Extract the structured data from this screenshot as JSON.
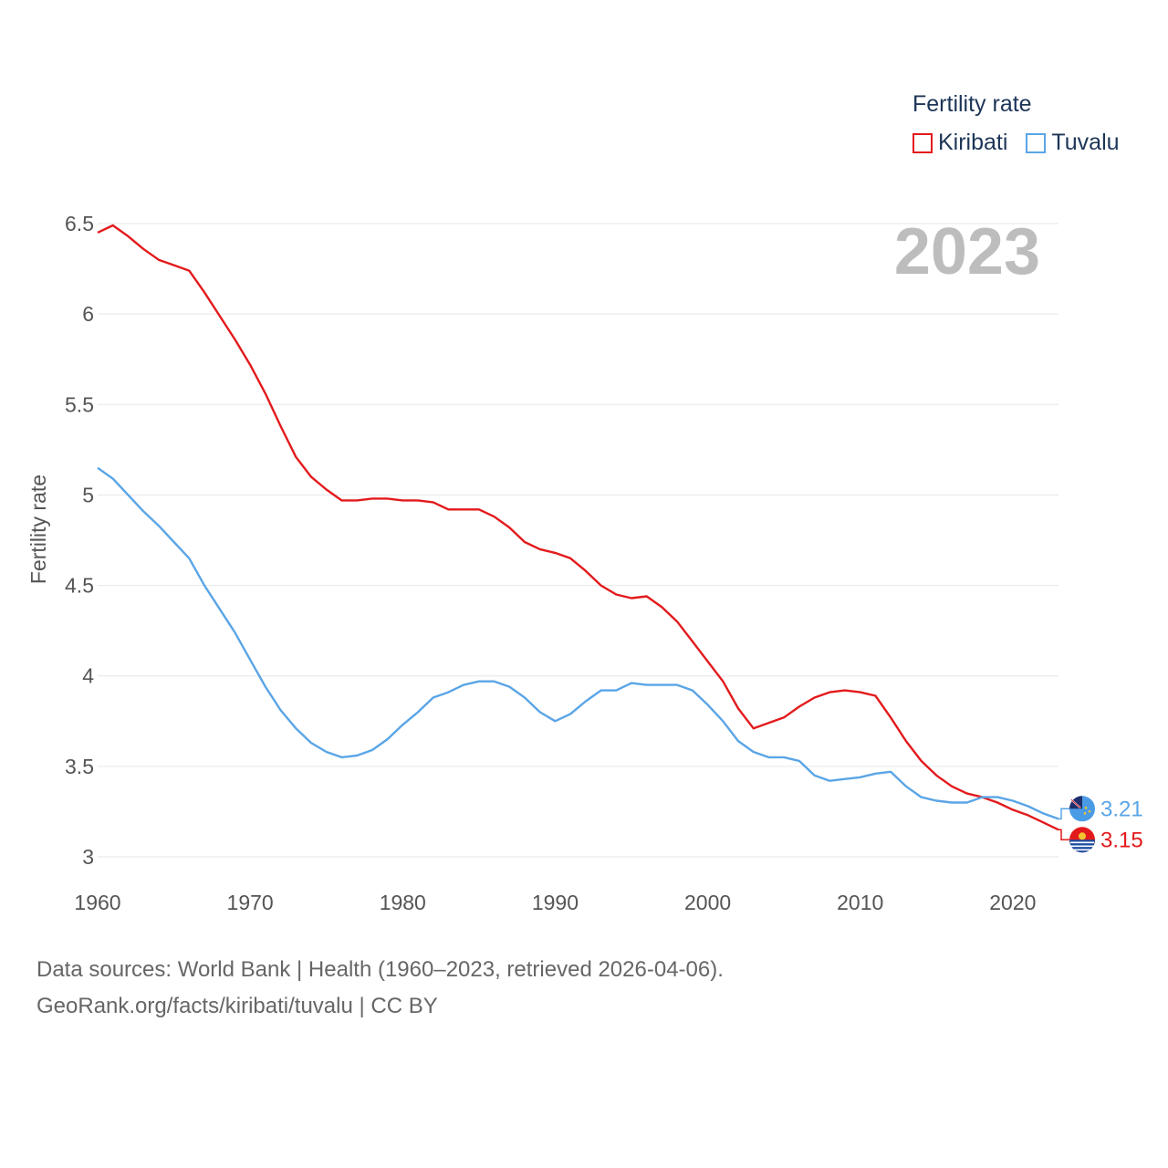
{
  "legend": {
    "title": "Fertility rate",
    "items": [
      {
        "label": "Kiribati",
        "color": "#e31a1c"
      },
      {
        "label": "Tuvalu",
        "color": "#5aa5e6"
      }
    ]
  },
  "year_display": "2023",
  "footer": {
    "line1": "Data sources: World Bank | Health (1960–2023, retrieved 2026-04-06).",
    "line2": "GeoRank.org/facts/kiribati/tuvalu | CC BY"
  },
  "chart_data": {
    "type": "line",
    "title": "",
    "xlabel": "",
    "ylabel": "Fertility rate",
    "xlim": [
      1960,
      2023
    ],
    "ylim": [
      3,
      6.5
    ],
    "x_ticks": [
      1960,
      1970,
      1980,
      1990,
      2000,
      2010,
      2020
    ],
    "y_ticks": [
      {
        "value": 3,
        "label": "3"
      },
      {
        "value": 3.5,
        "label": "3.5"
      },
      {
        "value": 4,
        "label": "4"
      },
      {
        "value": 4.5,
        "label": "4.5"
      },
      {
        "value": 5,
        "label": "5"
      },
      {
        "value": 5.5,
        "label": "5.5"
      },
      {
        "value": 6,
        "label": "6"
      },
      {
        "value": 6.5,
        "label": "6.5"
      }
    ],
    "grid": true,
    "x": [
      1960,
      1961,
      1962,
      1963,
      1964,
      1965,
      1966,
      1967,
      1968,
      1969,
      1970,
      1971,
      1972,
      1973,
      1974,
      1975,
      1976,
      1977,
      1978,
      1979,
      1980,
      1981,
      1982,
      1983,
      1984,
      1985,
      1986,
      1987,
      1988,
      1989,
      1990,
      1991,
      1992,
      1993,
      1994,
      1995,
      1996,
      1997,
      1998,
      1999,
      2000,
      2001,
      2002,
      2003,
      2004,
      2005,
      2006,
      2007,
      2008,
      2009,
      2010,
      2011,
      2012,
      2013,
      2014,
      2015,
      2016,
      2017,
      2018,
      2019,
      2020,
      2021,
      2022,
      2023
    ],
    "series": [
      {
        "name": "Kiribati",
        "color": "#e31a1c",
        "end_label": "3.15",
        "values": [
          6.45,
          6.49,
          6.43,
          6.36,
          6.3,
          6.27,
          6.24,
          6.12,
          5.99,
          5.86,
          5.72,
          5.56,
          5.38,
          5.21,
          5.1,
          5.03,
          4.97,
          4.97,
          4.98,
          4.98,
          4.97,
          4.97,
          4.96,
          4.92,
          4.92,
          4.92,
          4.88,
          4.82,
          4.74,
          4.7,
          4.68,
          4.65,
          4.58,
          4.5,
          4.45,
          4.43,
          4.44,
          4.38,
          4.3,
          4.19,
          4.08,
          3.97,
          3.82,
          3.71,
          3.74,
          3.77,
          3.83,
          3.88,
          3.91,
          3.92,
          3.91,
          3.89,
          3.77,
          3.64,
          3.53,
          3.45,
          3.39,
          3.35,
          3.33,
          3.3,
          3.26,
          3.23,
          3.19,
          3.15
        ]
      },
      {
        "name": "Tuvalu",
        "color": "#5aa5e6",
        "end_label": "3.21",
        "values": [
          5.15,
          5.09,
          5.0,
          4.91,
          4.83,
          4.74,
          4.65,
          4.5,
          4.37,
          4.24,
          4.09,
          3.94,
          3.81,
          3.71,
          3.63,
          3.58,
          3.55,
          3.56,
          3.59,
          3.65,
          3.73,
          3.8,
          3.88,
          3.91,
          3.95,
          3.97,
          3.97,
          3.94,
          3.88,
          3.8,
          3.75,
          3.79,
          3.86,
          3.92,
          3.92,
          3.96,
          3.95,
          3.95,
          3.95,
          3.92,
          3.84,
          3.75,
          3.64,
          3.58,
          3.55,
          3.55,
          3.53,
          3.45,
          3.42,
          3.43,
          3.44,
          3.46,
          3.47,
          3.39,
          3.33,
          3.31,
          3.3,
          3.3,
          3.33,
          3.33,
          3.31,
          3.28,
          3.24,
          3.21
        ]
      }
    ]
  }
}
